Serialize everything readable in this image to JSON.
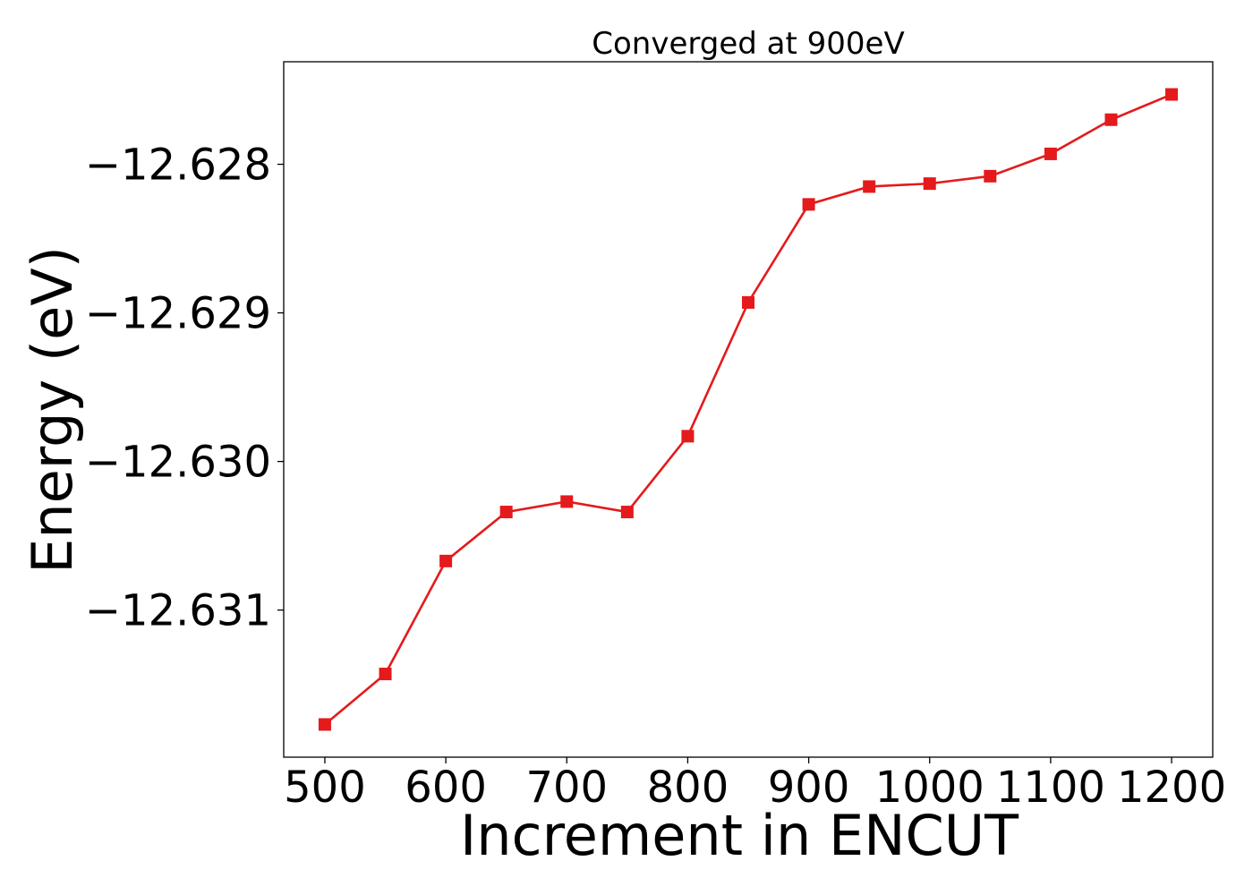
{
  "chart_data": {
    "type": "line",
    "title": "Converged at 900eV",
    "xlabel": "Increment in ENCUT",
    "ylabel": "Energy (eV)",
    "x_ticks": [
      500,
      600,
      700,
      800,
      900,
      1000,
      1100,
      1200
    ],
    "x_tick_labels": [
      "500",
      "600",
      "700",
      "800",
      "900",
      "1000",
      "1100",
      "1200"
    ],
    "y_ticks": [
      -12.628,
      -12.629,
      -12.63,
      -12.631
    ],
    "y_tick_labels": [
      "−12.628",
      "−12.629",
      "−12.630",
      "−12.631"
    ],
    "xlim": [
      466,
      1234
    ],
    "ylim": [
      -12.63199,
      -12.62731
    ],
    "grid": false,
    "series": [
      {
        "color": "#e41a1c",
        "marker": "square",
        "x": [
          500,
          550,
          600,
          650,
          700,
          750,
          800,
          850,
          900,
          950,
          1000,
          1050,
          1100,
          1150,
          1200
        ],
        "y": [
          -12.63177,
          -12.63143,
          -12.63067,
          -12.63034,
          -12.63027,
          -12.63034,
          -12.62983,
          -12.62893,
          -12.62827,
          -12.62815,
          -12.62813,
          -12.62808,
          -12.62793,
          -12.6277,
          -12.62753
        ]
      }
    ]
  }
}
